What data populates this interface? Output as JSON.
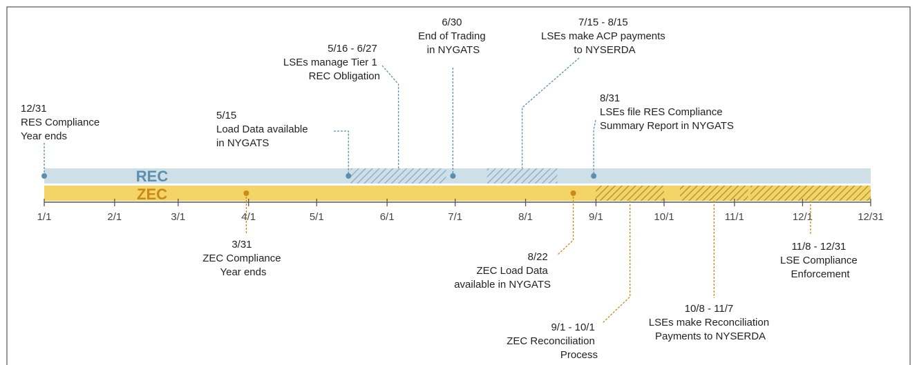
{
  "colors": {
    "rec_bar": "#cfdfe8",
    "rec_accent": "#5b8fad",
    "zec_bar": "#f4d466",
    "zec_accent": "#c98a19",
    "axis": "#555555",
    "text": "#222222"
  },
  "lanes": {
    "rec_label": "REC",
    "zec_label": "ZEC"
  },
  "axis_ticks": [
    "1/1",
    "2/1",
    "3/1",
    "4/1",
    "5/1",
    "6/1",
    "7/1",
    "8/1",
    "9/1",
    "10/1",
    "11/1",
    "12/1",
    "12/31"
  ],
  "rec_hatched_periods": [
    {
      "start": "5/16",
      "end": "6/27"
    },
    {
      "start": "7/15",
      "end": "8/15"
    }
  ],
  "zec_hatched_periods": [
    {
      "start": "9/1",
      "end": "10/1"
    },
    {
      "start": "10/8",
      "end": "11/7"
    },
    {
      "start": "11/8",
      "end": "12/31"
    }
  ],
  "rec_events": [
    {
      "id": "res-year-ends",
      "date": "12/31",
      "lines": [
        "RES Compliance",
        "Year ends"
      ]
    },
    {
      "id": "load-data",
      "date": "5/15",
      "lines": [
        "Load Data available",
        "in NYGATS"
      ]
    },
    {
      "id": "manage-tier1",
      "date": "5/16 - 6/27",
      "lines": [
        "LSEs manage Tier 1",
        "REC Obligation"
      ]
    },
    {
      "id": "end-trading",
      "date": "6/30",
      "lines": [
        "End of Trading",
        "in NYGATS"
      ]
    },
    {
      "id": "acp-payments",
      "date": "7/15 - 8/15",
      "lines": [
        "LSEs make ACP payments",
        "to NYSERDA"
      ]
    },
    {
      "id": "res-report",
      "date": "8/31",
      "lines": [
        "LSEs file RES Compliance",
        "Summary Report in NYGATS"
      ]
    }
  ],
  "zec_events": [
    {
      "id": "zec-year-ends",
      "date": "3/31",
      "lines": [
        "ZEC Compliance",
        "Year ends"
      ]
    },
    {
      "id": "zec-load-data",
      "date": "8/22",
      "lines": [
        "ZEC Load Data",
        "available in NYGATS"
      ]
    },
    {
      "id": "zec-reconciliation",
      "date": "9/1 - 10/1",
      "lines": [
        "ZEC Reconciliation",
        "Process"
      ]
    },
    {
      "id": "reconciliation-payments",
      "date": "10/8 - 11/7",
      "lines": [
        "LSEs make Reconciliation",
        "Payments to NYSERDA"
      ]
    },
    {
      "id": "compliance-enforcement",
      "date": "11/8 - 12/31",
      "lines": [
        "LSE Compliance",
        "Enforcement"
      ]
    }
  ]
}
